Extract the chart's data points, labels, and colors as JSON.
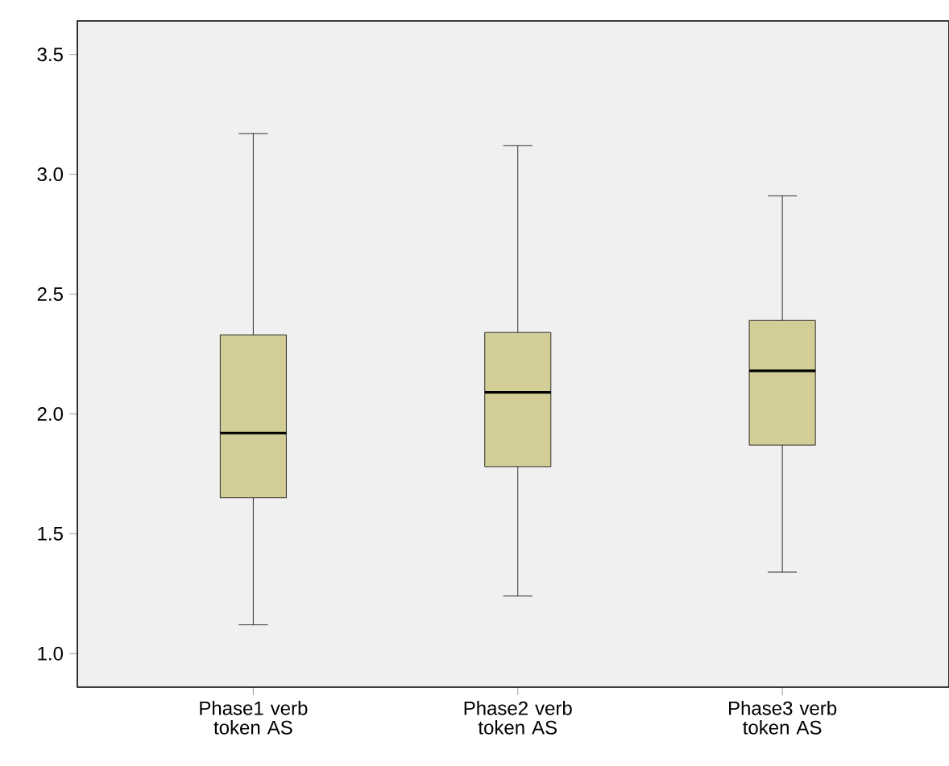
{
  "chart_data": {
    "type": "box",
    "categories": [
      "Phase1 verb\ntoken  AS",
      "Phase2 verb\ntoken  AS",
      "Phase3 verb\ntoken  AS"
    ],
    "boxes": [
      {
        "low": 1.12,
        "q1": 1.65,
        "median": 1.92,
        "q3": 2.33,
        "high": 3.17
      },
      {
        "low": 1.24,
        "q1": 1.78,
        "median": 2.09,
        "q3": 2.34,
        "high": 3.12
      },
      {
        "low": 1.34,
        "q1": 1.87,
        "median": 2.18,
        "q3": 2.39,
        "high": 2.91
      }
    ],
    "color": "#d3ce97",
    "ylim": [
      0.86,
      3.64
    ],
    "yticks": [
      {
        "value": 1.0,
        "label": "1.0"
      },
      {
        "value": 1.5,
        "label": "1.5"
      },
      {
        "value": 2.0,
        "label": "2.0"
      },
      {
        "value": 2.5,
        "label": "2.5"
      },
      {
        "value": 3.0,
        "label": "3.0"
      },
      {
        "value": 3.5,
        "label": "3.5"
      }
    ],
    "grid": false
  }
}
